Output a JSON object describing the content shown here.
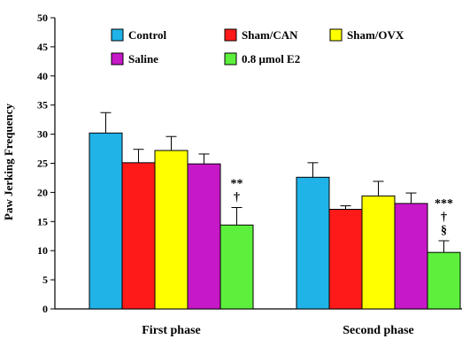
{
  "chart_data": {
    "type": "bar",
    "title": "",
    "xlabel": "",
    "ylabel": "Paw Jerking Frequency",
    "ylim": [
      0,
      50
    ],
    "yticks": [
      0,
      5,
      10,
      15,
      20,
      25,
      30,
      35,
      40,
      45,
      50
    ],
    "grid": false,
    "legend_position": "top",
    "categories": [
      "First phase",
      "Second phase"
    ],
    "series": [
      {
        "name": "Control",
        "color": "#1fb3e8",
        "values": [
          30.2,
          22.6
        ],
        "errors": [
          3.5,
          2.5
        ]
      },
      {
        "name": "Sham/CAN",
        "color": "#ff1a1a",
        "values": [
          25.1,
          17.1
        ],
        "errors": [
          2.3,
          0.6
        ]
      },
      {
        "name": "Sham/OVX",
        "color": "#ffff00",
        "values": [
          27.2,
          19.4
        ],
        "errors": [
          2.4,
          2.5
        ]
      },
      {
        "name": "Saline",
        "color": "#c718c7",
        "values": [
          24.9,
          18.1
        ],
        "errors": [
          1.7,
          1.8
        ]
      },
      {
        "name": "0.8 μmol E2",
        "color": "#5cf03c",
        "values": [
          14.4,
          9.7
        ],
        "errors": [
          3.0,
          2.0
        ]
      }
    ],
    "annotations": [
      {
        "category": "First phase",
        "series": "0.8 μmol E2",
        "lines": [
          "**",
          "†"
        ]
      },
      {
        "category": "Second phase",
        "series": "0.8 μmol E2",
        "lines": [
          "***",
          "†",
          "§"
        ]
      }
    ]
  }
}
